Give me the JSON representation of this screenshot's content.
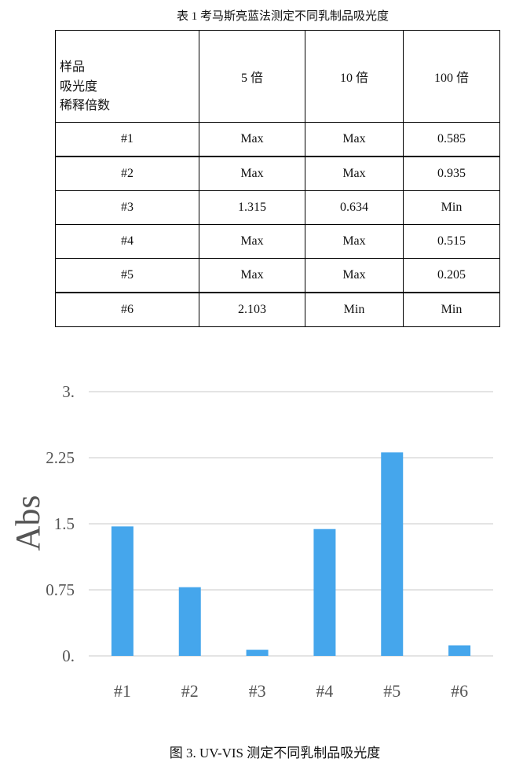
{
  "table": {
    "caption": "表 1 考马斯亮蓝法测定不同乳制品吸光度",
    "header": {
      "corner_lines": [
        "样品",
        "吸光度",
        "稀释倍数"
      ],
      "columns": [
        "5 倍",
        "10 倍",
        "100 倍"
      ]
    },
    "rows": [
      {
        "sample": "#1",
        "values": [
          "Max",
          "Max",
          "0.585"
        ]
      },
      {
        "sample": "#2",
        "values": [
          "Max",
          "Max",
          "0.935"
        ]
      },
      {
        "sample": "#3",
        "values": [
          "1.315",
          "0.634",
          "Min"
        ]
      },
      {
        "sample": "#4",
        "values": [
          "Max",
          "Max",
          "0.515"
        ]
      },
      {
        "sample": "#5",
        "values": [
          "Max",
          "Max",
          "0.205"
        ]
      },
      {
        "sample": "#6",
        "values": [
          "2.103",
          "Min",
          "Min"
        ]
      }
    ]
  },
  "chart_data": {
    "type": "bar",
    "categories": [
      "#1",
      "#2",
      "#3",
      "#4",
      "#5",
      "#6"
    ],
    "values": [
      1.47,
      0.78,
      0.07,
      1.44,
      2.31,
      0.12
    ],
    "xlabel": "",
    "ylabel": "Abs",
    "ylim": [
      0,
      3
    ],
    "yticks": [
      0,
      0.75,
      1.5,
      2.25,
      3
    ],
    "ytick_labels": [
      "0.",
      "0.75",
      "1.5",
      "2.25",
      "3."
    ],
    "grid": true,
    "legend": "none",
    "bar_color": "#45a6ec",
    "grid_color": "#dcdcdc",
    "caption": "图 3. UV-VIS 测定不同乳制品吸光度"
  }
}
